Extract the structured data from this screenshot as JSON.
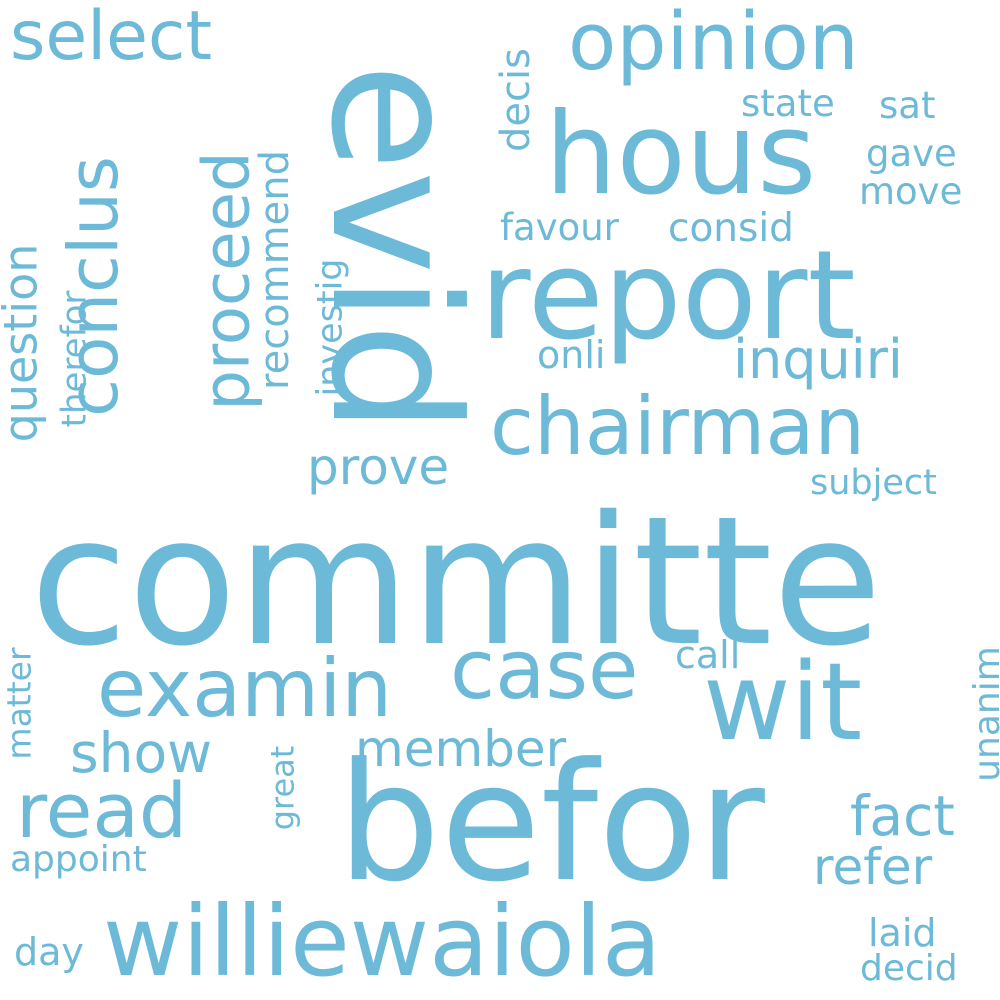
{
  "word_color": "#6db9d8",
  "background_color": "#ffffff",
  "words": [
    {
      "text": "committe",
      "orientation": "horizontal"
    },
    {
      "text": "evid",
      "orientation": "vertical"
    },
    {
      "text": "befor",
      "orientation": "horizontal"
    },
    {
      "text": "report",
      "orientation": "horizontal"
    },
    {
      "text": "hous",
      "orientation": "horizontal"
    },
    {
      "text": "williewaiola",
      "orientation": "horizontal"
    },
    {
      "text": "wit",
      "orientation": "horizontal"
    },
    {
      "text": "chairman",
      "orientation": "horizontal"
    },
    {
      "text": "examin",
      "orientation": "horizontal"
    },
    {
      "text": "opinion",
      "orientation": "horizontal"
    },
    {
      "text": "case",
      "orientation": "horizontal"
    },
    {
      "text": "read",
      "orientation": "horizontal"
    },
    {
      "text": "conclus",
      "orientation": "vertical"
    },
    {
      "text": "proceed",
      "orientation": "vertical"
    },
    {
      "text": "select",
      "orientation": "horizontal"
    },
    {
      "text": "question",
      "orientation": "vertical"
    },
    {
      "text": "inquiri",
      "orientation": "horizontal"
    },
    {
      "text": "member",
      "orientation": "horizontal"
    },
    {
      "text": "prove",
      "orientation": "horizontal"
    },
    {
      "text": "show",
      "orientation": "horizontal"
    },
    {
      "text": "fact",
      "orientation": "horizontal"
    },
    {
      "text": "refer",
      "orientation": "horizontal"
    },
    {
      "text": "recommend",
      "orientation": "vertical"
    },
    {
      "text": "decis",
      "orientation": "vertical"
    },
    {
      "text": "consid",
      "orientation": "horizontal"
    },
    {
      "text": "favour",
      "orientation": "horizontal"
    },
    {
      "text": "subject",
      "orientation": "horizontal"
    },
    {
      "text": "appoint",
      "orientation": "horizontal"
    },
    {
      "text": "call",
      "orientation": "horizontal"
    },
    {
      "text": "laid",
      "orientation": "horizontal"
    },
    {
      "text": "decid",
      "orientation": "horizontal"
    },
    {
      "text": "day",
      "orientation": "horizontal"
    },
    {
      "text": "therefor",
      "orientation": "vertical"
    },
    {
      "text": "investig",
      "orientation": "vertical"
    },
    {
      "text": "onli",
      "orientation": "horizontal"
    },
    {
      "text": "gave",
      "orientation": "horizontal"
    },
    {
      "text": "move",
      "orientation": "horizontal"
    },
    {
      "text": "state",
      "orientation": "horizontal"
    },
    {
      "text": "sat",
      "orientation": "horizontal"
    },
    {
      "text": "matter",
      "orientation": "vertical"
    },
    {
      "text": "great",
      "orientation": "vertical"
    },
    {
      "text": "unanim",
      "orientation": "vertical"
    }
  ]
}
